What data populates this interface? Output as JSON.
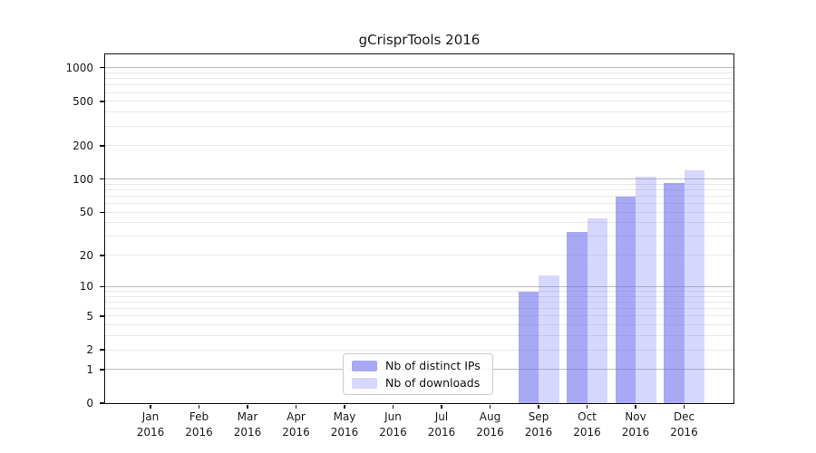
{
  "title": "gCrisprTools 2016",
  "chart_data": {
    "type": "bar",
    "title": "gCrisprTools 2016",
    "categories": [
      "Jan 2016",
      "Feb 2016",
      "Mar 2016",
      "Apr 2016",
      "May 2016",
      "Jun 2016",
      "Jul 2016",
      "Aug 2016",
      "Sep 2016",
      "Oct 2016",
      "Nov 2016",
      "Dec 2016"
    ],
    "series": [
      {
        "name": "Nb of distinct IPs",
        "color": "rgba(102,102,238,0.57)",
        "values": [
          0,
          0,
          0,
          0,
          0,
          0,
          0,
          0,
          9,
          33,
          70,
          93
        ]
      },
      {
        "name": "Nb of downloads",
        "color": "rgba(102,102,238,0.26)",
        "values": [
          0,
          0,
          0,
          0,
          0,
          0,
          0,
          0,
          13,
          44,
          106,
          120
        ]
      }
    ],
    "xlabel": "",
    "ylabel": "",
    "y_scale": "log10(value+1)",
    "ylim": [
      0,
      1300
    ],
    "y_ticks": [
      0,
      1,
      2,
      5,
      10,
      20,
      50,
      100,
      200,
      500,
      1000
    ],
    "y_gridlines_major": [
      1,
      10,
      100,
      1000
    ],
    "y_gridlines_minor": [
      2,
      3,
      4,
      5,
      6,
      7,
      8,
      9,
      20,
      30,
      40,
      50,
      60,
      70,
      80,
      90,
      200,
      300,
      400,
      500,
      600,
      700,
      800,
      900
    ],
    "grid": true,
    "legend_position": "lower center",
    "colors": {
      "major_grid": "#bdbdbd",
      "minor_grid": "#e9e9e9",
      "spine": "#111111",
      "text": "#1a1a1a"
    }
  },
  "legend": {
    "items": [
      {
        "label": "Nb of distinct IPs"
      },
      {
        "label": "Nb of downloads"
      }
    ]
  }
}
